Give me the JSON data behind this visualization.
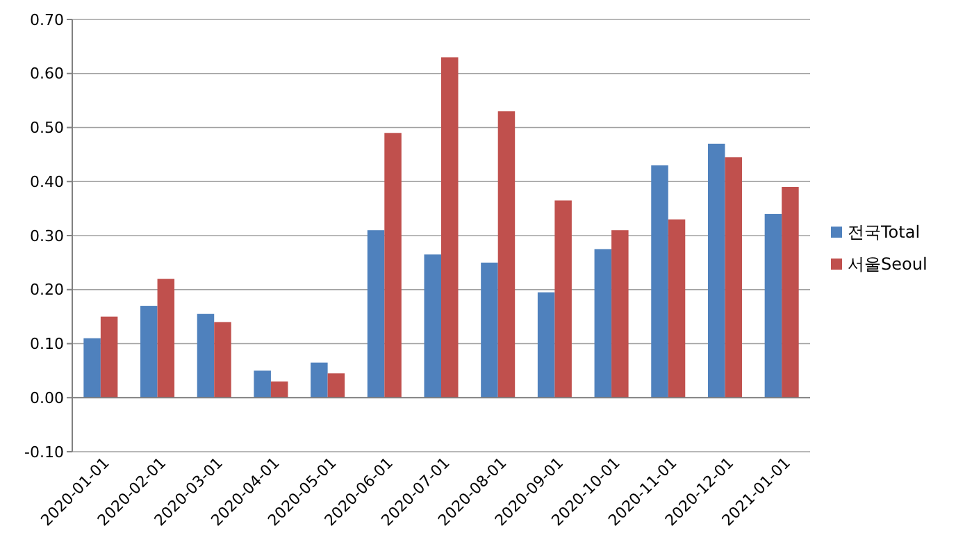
{
  "chart_data": {
    "type": "bar",
    "categories": [
      "2020-01-01",
      "2020-02-01",
      "2020-03-01",
      "2020-04-01",
      "2020-05-01",
      "2020-06-01",
      "2020-07-01",
      "2020-08-01",
      "2020-09-01",
      "2020-10-01",
      "2020-11-01",
      "2020-12-01",
      "2021-01-01"
    ],
    "series": [
      {
        "name": "전국Total",
        "color": "#4f81bd",
        "values": [
          0.11,
          0.17,
          0.155,
          0.05,
          0.065,
          0.31,
          0.265,
          0.25,
          0.195,
          0.275,
          0.43,
          0.47,
          0.34
        ]
      },
      {
        "name": "서울Seoul",
        "color": "#c0504d",
        "values": [
          0.15,
          0.22,
          0.14,
          0.03,
          0.045,
          0.49,
          0.63,
          0.53,
          0.365,
          0.31,
          0.33,
          0.445,
          0.39
        ]
      }
    ],
    "ylim": [
      -0.1,
      0.7
    ],
    "yticks": [
      {
        "value": -0.1,
        "label": "-0.10"
      },
      {
        "value": 0,
        "label": "0.00"
      },
      {
        "value": 0.1,
        "label": "0.10"
      },
      {
        "value": 0.2,
        "label": "0.20"
      },
      {
        "value": 0.3,
        "label": "0.30"
      },
      {
        "value": 0.4,
        "label": "0.40"
      },
      {
        "value": 0.5,
        "label": "0.50"
      },
      {
        "value": 0.6,
        "label": "0.60"
      },
      {
        "value": 0.7,
        "label": "0.70"
      }
    ],
    "grid": "y",
    "legend": "right"
  }
}
